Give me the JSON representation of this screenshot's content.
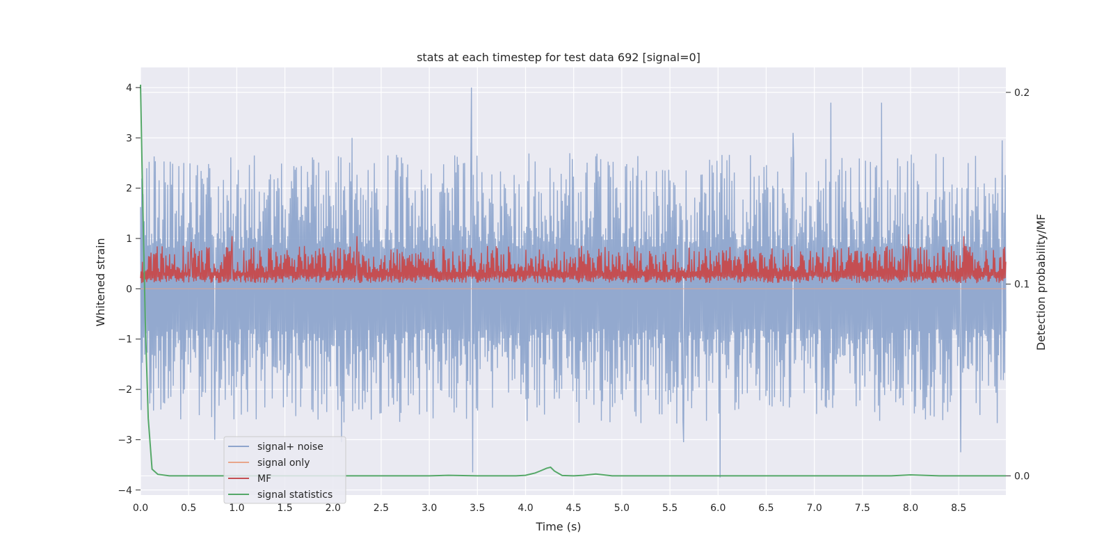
{
  "chart_data": {
    "type": "line",
    "title": "stats at each timestep for test data 692 [signal=0]",
    "xlabel": "Time (s)",
    "ylabel": "Whitened strain",
    "y2label": "Detection probability/MF",
    "xlim": [
      0.0,
      8.99
    ],
    "ylim": [
      -4.1,
      4.4
    ],
    "y2lim": [
      -0.01,
      0.213
    ],
    "xticks": [
      "0.0",
      "0.5",
      "1.0",
      "1.5",
      "2.0",
      "2.5",
      "3.0",
      "3.5",
      "4.0",
      "4.5",
      "5.0",
      "5.5",
      "6.0",
      "6.5",
      "7.0",
      "7.5",
      "8.0",
      "8.5"
    ],
    "yticks": [
      "4",
      "3",
      "2",
      "1",
      "0",
      "−1",
      "−2",
      "−3",
      "−4"
    ],
    "y2ticks": [
      "0.2",
      "0.1",
      "0.0"
    ],
    "grid": true,
    "legend_position": "lower-left",
    "legend": [
      "signal+ noise",
      "signal only",
      "MF",
      "signal statistics"
    ],
    "colors": {
      "signal_noise": "#8ea5cc",
      "signal_only": "#e8a58a",
      "mf": "#c44e52",
      "signal_statistics": "#55a868",
      "plot_bg": "#eaeaf2",
      "grid": "#ffffff"
    },
    "series": [
      {
        "name": "signal+ noise",
        "axis": "left",
        "description": "dense noise",
        "band": [
          -2.2,
          2.2
        ],
        "peaks": [
          {
            "x": 3.44,
            "y": 4.0
          },
          {
            "x": 3.45,
            "y": -3.65
          },
          {
            "x": 7.17,
            "y": 3.7
          },
          {
            "x": 7.7,
            "y": 3.7
          },
          {
            "x": 6.02,
            "y": -3.75
          },
          {
            "x": 8.52,
            "y": -3.25
          },
          {
            "x": 6.78,
            "y": 3.1
          },
          {
            "x": 8.95,
            "y": 2.95
          },
          {
            "x": 2.2,
            "y": 3.0
          },
          {
            "x": 2.09,
            "y": -3.05
          },
          {
            "x": 0.77,
            "y": -3.0
          },
          {
            "x": 5.64,
            "y": -3.05
          }
        ]
      },
      {
        "name": "signal only",
        "axis": "left",
        "values_constant": 0
      },
      {
        "name": "MF",
        "axis": "right",
        "band": [
          0.1,
          0.125
        ],
        "peaks": [
          {
            "x": 0.95,
            "y": 0.125
          },
          {
            "x": 2.25,
            "y": 0.125
          },
          {
            "x": 7.98,
            "y": 0.126
          },
          {
            "x": 8.55,
            "y": 0.125
          },
          {
            "x": 0.53,
            "y": 0.122
          }
        ]
      },
      {
        "name": "signal statistics",
        "axis": "right",
        "x": [
          0.0,
          0.02,
          0.05,
          0.08,
          0.12,
          0.18,
          0.3,
          0.6,
          1.0,
          2.0,
          3.0,
          3.2,
          3.5,
          3.9,
          4.0,
          4.1,
          4.15,
          4.22,
          4.26,
          4.3,
          4.38,
          4.5,
          4.6,
          4.73,
          4.9,
          5.2,
          6.0,
          7.0,
          7.8,
          8.0,
          8.3,
          8.99
        ],
        "y": [
          0.204,
          0.15,
          0.08,
          0.03,
          0.0035,
          0.0008,
          0.0,
          0.0,
          0.0,
          0.0,
          0.0,
          0.0003,
          0.0,
          0.0,
          0.0003,
          0.0015,
          0.0025,
          0.004,
          0.0045,
          0.0025,
          0.0002,
          0.0,
          0.0003,
          0.001,
          0.0,
          0.0,
          0.0,
          0.0,
          0.0,
          0.0005,
          0.0,
          0.0
        ]
      }
    ]
  }
}
